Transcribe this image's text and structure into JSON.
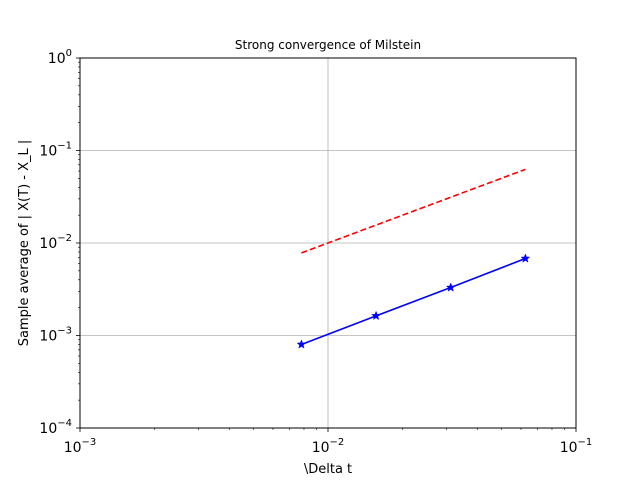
{
  "chart_data": {
    "type": "line",
    "title": "Strong convergence of Milstein",
    "xlabel": "\\Delta t",
    "ylabel": "Sample average of | X(T) - X_L |",
    "xscale": "log",
    "yscale": "log",
    "xlim": [
      0.001,
      0.1
    ],
    "ylim": [
      0.0001,
      1
    ],
    "grid": true,
    "xticks": [
      {
        "value": 0.001,
        "base": "10",
        "exp": "−3"
      },
      {
        "value": 0.01,
        "base": "10",
        "exp": "−2"
      },
      {
        "value": 0.1,
        "base": "10",
        "exp": "−1"
      }
    ],
    "yticks": [
      {
        "value": 0.0001,
        "base": "10",
        "exp": "−4"
      },
      {
        "value": 0.001,
        "base": "10",
        "exp": "−3"
      },
      {
        "value": 0.01,
        "base": "10",
        "exp": "−2"
      },
      {
        "value": 0.1,
        "base": "10",
        "exp": "−1"
      },
      {
        "value": 1,
        "base": "10",
        "exp": "0"
      }
    ],
    "series": [
      {
        "color": "#0000ff",
        "linestyle": "solid",
        "marker": "star",
        "x": [
          0.0078125,
          0.015625,
          0.03125,
          0.0625
        ],
        "y": [
          0.0008,
          0.00163,
          0.0033,
          0.0068
        ]
      },
      {
        "color": "#ff0000",
        "linestyle": "dashed",
        "marker": "none",
        "x": [
          0.0078125,
          0.0625
        ],
        "y": [
          0.0078125,
          0.0625
        ]
      }
    ]
  }
}
